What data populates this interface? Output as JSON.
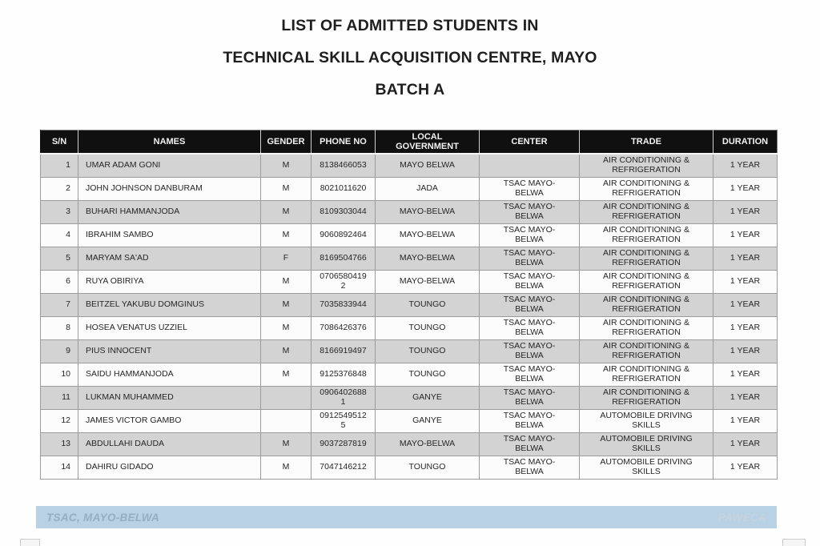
{
  "title": {
    "line1": "LIST OF ADMITTED STUDENTS IN",
    "line2": "TECHNICAL SKILL ACQUISITION CENTRE, MAYO",
    "line3": "BATCH A"
  },
  "table": {
    "columns": [
      "S/N",
      "NAMES",
      "GENDER",
      "PHONE NO",
      "LOCAL GOVERNMENT",
      "CENTER",
      "TRADE",
      "DURATION"
    ],
    "rows": [
      [
        "1",
        "UMAR ADAM GONI",
        "M",
        "8138466053",
        "MAYO BELWA",
        "",
        "AIR CONDITIONING & REFRIGERATION",
        "1 YEAR"
      ],
      [
        "2",
        "JOHN JOHNSON DANBURAM",
        "M",
        "8021011620",
        "JADA",
        "TSAC MAYO-BELWA",
        "AIR CONDITIONING & REFRIGERATION",
        "1 YEAR"
      ],
      [
        "3",
        "BUHARI HAMMANJODA",
        "M",
        "8109303044",
        "MAYO-BELWA",
        "TSAC MAYO-BELWA",
        "AIR CONDITIONING & REFRIGERATION",
        "1 YEAR"
      ],
      [
        "4",
        "IBRAHIM SAMBO",
        "M",
        "9060892464",
        "MAYO-BELWA",
        "TSAC MAYO-BELWA",
        "AIR CONDITIONING & REFRIGERATION",
        "1 YEAR"
      ],
      [
        "5",
        "MARYAM SA'AD",
        "F",
        "8169504766",
        "MAYO-BELWA",
        "TSAC MAYO-BELWA",
        "AIR CONDITIONING & REFRIGERATION",
        "1 YEAR"
      ],
      [
        "6",
        "RUYA OBIRIYA",
        "M",
        "07065804192",
        "MAYO-BELWA",
        "TSAC MAYO-BELWA",
        "AIR CONDITIONING & REFRIGERATION",
        "1 YEAR"
      ],
      [
        "7",
        "BEITZEL YAKUBU DOMGINUS",
        "M",
        "7035833944",
        "TOUNGO",
        "TSAC MAYO-BELWA",
        "AIR CONDITIONING & REFRIGERATION",
        "1 YEAR"
      ],
      [
        "8",
        "HOSEA VENATUS UZZIEL",
        "M",
        "7086426376",
        "TOUNGO",
        "TSAC MAYO-BELWA",
        "AIR CONDITIONING & REFRIGERATION",
        "1 YEAR"
      ],
      [
        "9",
        "PIUS INNOCENT",
        "M",
        "8166919497",
        "TOUNGO",
        "TSAC MAYO-BELWA",
        "AIR CONDITIONING & REFRIGERATION",
        "1 YEAR"
      ],
      [
        "10",
        "SAIDU HAMMANJODA",
        "M",
        "9125376848",
        "TOUNGO",
        "TSAC MAYO-BELWA",
        "AIR CONDITIONING & REFRIGERATION",
        "1 YEAR"
      ],
      [
        "11",
        "LUKMAN MUHAMMED",
        "",
        "09064026881",
        "GANYE",
        "TSAC MAYO-BELWA",
        "AIR CONDITIONING & REFRIGERATION",
        "1 YEAR"
      ],
      [
        "12",
        "JAMES VICTOR GAMBO",
        "",
        "09125495125",
        "GANYE",
        "TSAC MAYO-BELWA",
        "AUTOMOBILE DRIVING SKILLS",
        "1 YEAR"
      ],
      [
        "13",
        "ABDULLAHI DAUDA",
        "M",
        "9037287819",
        "MAYO-BELWA",
        "TSAC MAYO-BELWA",
        "AUTOMOBILE DRIVING SKILLS",
        "1 YEAR"
      ],
      [
        "14",
        "DAHIRU GIDADO",
        "M",
        "7047146212",
        "TOUNGO",
        "TSAC MAYO-BELWA",
        "AUTOMOBILE DRIVING SKILLS",
        "1 YEAR"
      ]
    ]
  },
  "footer": {
    "left": "TSAC, MAYO-BELWA",
    "right": "PAWECA"
  },
  "colors": {
    "header_bg": "#101010",
    "row_shade": "#d3d3d3",
    "row_plain": "#fcfcfc",
    "footer_bg": "#b8d1e4"
  }
}
